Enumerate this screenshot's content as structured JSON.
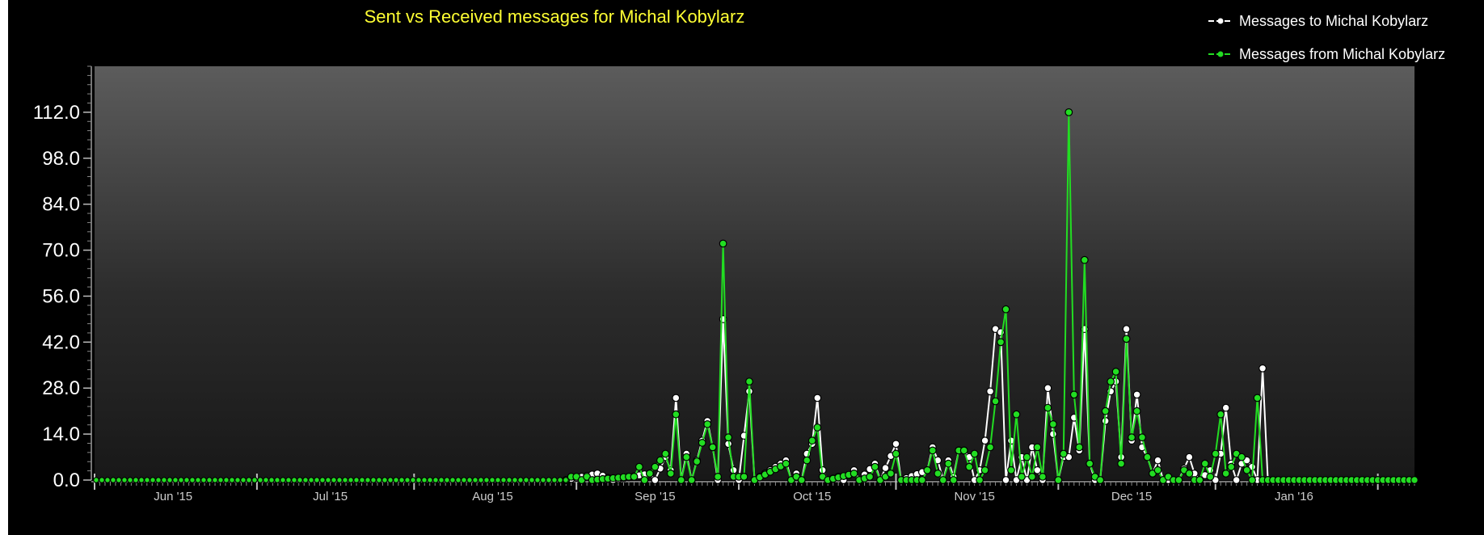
{
  "chart_data": {
    "type": "line",
    "title": "Sent vs Received messages for Michal Kobylarz",
    "xlabel": "",
    "ylabel": "",
    "ylim": [
      0,
      126
    ],
    "y_ticks": [
      "0.0",
      "14.0",
      "28.0",
      "42.0",
      "56.0",
      "70.0",
      "84.0",
      "98.0",
      "112.0"
    ],
    "x_range": [
      "2015-05-17",
      "2016-01-24"
    ],
    "x_ticks": [
      {
        "date": "2015-06-01",
        "label": "Jun '15"
      },
      {
        "date": "2015-07-01",
        "label": "Jul '15"
      },
      {
        "date": "2015-08-01",
        "label": "Aug '15"
      },
      {
        "date": "2015-09-01",
        "label": "Sep '15"
      },
      {
        "date": "2015-10-01",
        "label": "Oct '15"
      },
      {
        "date": "2015-11-01",
        "label": "Nov '15"
      },
      {
        "date": "2015-12-01",
        "label": "Dec '15"
      },
      {
        "date": "2016-01-01",
        "label": "Jan '16"
      }
    ],
    "grid": false,
    "legend_position": "top-right",
    "series": [
      {
        "name": "Messages to Michal Kobylarz",
        "color": "#ffffff",
        "points": [
          [
            "2015-05-17",
            0
          ],
          [
            "2015-08-15",
            0
          ],
          [
            "2015-08-21",
            2
          ],
          [
            "2015-08-24",
            0
          ],
          [
            "2015-08-31",
            2
          ],
          [
            "2015-09-01",
            0
          ],
          [
            "2015-09-03",
            7
          ],
          [
            "2015-09-04",
            3
          ],
          [
            "2015-09-05",
            25
          ],
          [
            "2015-09-06",
            0
          ],
          [
            "2015-09-07",
            8
          ],
          [
            "2015-09-08",
            0
          ],
          [
            "2015-09-11",
            18
          ],
          [
            "2015-09-12",
            10
          ],
          [
            "2015-09-13",
            0
          ],
          [
            "2015-09-14",
            49
          ],
          [
            "2015-09-15",
            11
          ],
          [
            "2015-09-16",
            3
          ],
          [
            "2015-09-17",
            0
          ],
          [
            "2015-09-19",
            27
          ],
          [
            "2015-09-20",
            0
          ],
          [
            "2015-09-26",
            6
          ],
          [
            "2015-09-27",
            0
          ],
          [
            "2015-09-28",
            2
          ],
          [
            "2015-09-29",
            0
          ],
          [
            "2015-09-30",
            8
          ],
          [
            "2015-10-01",
            11
          ],
          [
            "2015-10-02",
            25
          ],
          [
            "2015-10-03",
            3
          ],
          [
            "2015-10-04",
            0
          ],
          [
            "2015-10-06",
            1
          ],
          [
            "2015-10-07",
            0
          ],
          [
            "2015-10-09",
            3
          ],
          [
            "2015-10-10",
            0
          ],
          [
            "2015-10-13",
            5
          ],
          [
            "2015-10-14",
            0
          ],
          [
            "2015-10-17",
            11
          ],
          [
            "2015-10-18",
            0
          ],
          [
            "2015-10-23",
            3
          ],
          [
            "2015-10-24",
            10
          ],
          [
            "2015-10-25",
            6
          ],
          [
            "2015-10-26",
            0
          ],
          [
            "2015-10-27",
            6
          ],
          [
            "2015-10-28",
            1
          ],
          [
            "2015-10-29",
            9
          ],
          [
            "2015-10-30",
            9
          ],
          [
            "2015-10-31",
            7
          ],
          [
            "2015-11-01",
            0
          ],
          [
            "2015-11-02",
            3
          ],
          [
            "2015-11-03",
            12
          ],
          [
            "2015-11-04",
            27
          ],
          [
            "2015-11-05",
            46
          ],
          [
            "2015-11-06",
            45
          ],
          [
            "2015-11-07",
            0
          ],
          [
            "2015-11-08",
            12
          ],
          [
            "2015-11-09",
            0
          ],
          [
            "2015-11-10",
            7
          ],
          [
            "2015-11-11",
            0
          ],
          [
            "2015-11-12",
            10
          ],
          [
            "2015-11-13",
            3
          ],
          [
            "2015-11-14",
            0
          ],
          [
            "2015-11-15",
            28
          ],
          [
            "2015-11-16",
            14
          ],
          [
            "2015-11-17",
            0
          ],
          [
            "2015-11-18",
            7
          ],
          [
            "2015-11-19",
            7
          ],
          [
            "2015-11-20",
            19
          ],
          [
            "2015-11-21",
            9
          ],
          [
            "2015-11-22",
            46
          ],
          [
            "2015-11-23",
            5
          ],
          [
            "2015-11-24",
            0
          ],
          [
            "2015-11-25",
            0
          ],
          [
            "2015-11-26",
            18
          ],
          [
            "2015-11-27",
            27
          ],
          [
            "2015-11-28",
            30
          ],
          [
            "2015-11-29",
            7
          ],
          [
            "2015-11-30",
            46
          ],
          [
            "2015-12-01",
            12
          ],
          [
            "2015-12-02",
            26
          ],
          [
            "2015-12-03",
            10
          ],
          [
            "2015-12-04",
            7
          ],
          [
            "2015-12-05",
            2
          ],
          [
            "2015-12-06",
            6
          ],
          [
            "2015-12-07",
            0
          ],
          [
            "2015-12-10",
            0
          ],
          [
            "2015-12-12",
            7
          ],
          [
            "2015-12-13",
            2
          ],
          [
            "2015-12-14",
            0
          ],
          [
            "2015-12-16",
            3
          ],
          [
            "2015-12-17",
            0
          ],
          [
            "2015-12-18",
            8
          ],
          [
            "2015-12-19",
            22
          ],
          [
            "2015-12-20",
            5
          ],
          [
            "2015-12-21",
            0
          ],
          [
            "2015-12-22",
            5
          ],
          [
            "2015-12-23",
            6
          ],
          [
            "2015-12-24",
            4
          ],
          [
            "2015-12-25",
            0
          ],
          [
            "2015-12-26",
            34
          ],
          [
            "2015-12-27",
            0
          ],
          [
            "2016-01-24",
            0
          ]
        ]
      },
      {
        "name": "Messages from Michal Kobylarz",
        "color": "#22dd22",
        "points": [
          [
            "2015-05-17",
            0
          ],
          [
            "2015-08-15",
            0
          ],
          [
            "2015-08-16",
            1
          ],
          [
            "2015-08-17",
            1
          ],
          [
            "2015-08-18",
            0
          ],
          [
            "2015-08-19",
            1
          ],
          [
            "2015-08-20",
            0
          ],
          [
            "2015-08-27",
            1
          ],
          [
            "2015-08-28",
            1
          ],
          [
            "2015-08-29",
            4
          ],
          [
            "2015-08-30",
            0
          ],
          [
            "2015-09-03",
            8
          ],
          [
            "2015-09-04",
            2
          ],
          [
            "2015-09-05",
            20
          ],
          [
            "2015-09-06",
            0
          ],
          [
            "2015-09-07",
            7
          ],
          [
            "2015-09-08",
            0
          ],
          [
            "2015-09-11",
            17
          ],
          [
            "2015-09-12",
            10
          ],
          [
            "2015-09-13",
            1
          ],
          [
            "2015-09-14",
            72
          ],
          [
            "2015-09-15",
            13
          ],
          [
            "2015-09-16",
            1
          ],
          [
            "2015-09-17",
            1
          ],
          [
            "2015-09-18",
            1
          ],
          [
            "2015-09-19",
            30
          ],
          [
            "2015-09-20",
            0
          ],
          [
            "2015-09-26",
            5
          ],
          [
            "2015-09-27",
            0
          ],
          [
            "2015-09-28",
            1
          ],
          [
            "2015-09-29",
            0
          ],
          [
            "2015-09-30",
            6
          ],
          [
            "2015-10-01",
            12
          ],
          [
            "2015-10-02",
            16
          ],
          [
            "2015-10-03",
            1
          ],
          [
            "2015-10-04",
            0
          ],
          [
            "2015-10-09",
            2
          ],
          [
            "2015-10-10",
            0
          ],
          [
            "2015-10-12",
            1
          ],
          [
            "2015-10-13",
            4
          ],
          [
            "2015-10-14",
            0
          ],
          [
            "2015-10-16",
            2
          ],
          [
            "2015-10-17",
            8
          ],
          [
            "2015-10-18",
            0
          ],
          [
            "2015-10-22",
            0
          ],
          [
            "2015-10-23",
            3
          ],
          [
            "2015-10-24",
            9
          ],
          [
            "2015-10-25",
            2
          ],
          [
            "2015-10-26",
            0
          ],
          [
            "2015-10-27",
            5
          ],
          [
            "2015-10-28",
            0
          ],
          [
            "2015-10-29",
            9
          ],
          [
            "2015-10-30",
            9
          ],
          [
            "2015-10-31",
            4
          ],
          [
            "2015-11-01",
            8
          ],
          [
            "2015-11-02",
            0
          ],
          [
            "2015-11-03",
            3
          ],
          [
            "2015-11-04",
            10
          ],
          [
            "2015-11-05",
            24
          ],
          [
            "2015-11-06",
            42
          ],
          [
            "2015-11-07",
            52
          ],
          [
            "2015-11-08",
            3
          ],
          [
            "2015-11-09",
            20
          ],
          [
            "2015-11-10",
            1
          ],
          [
            "2015-11-11",
            7
          ],
          [
            "2015-11-12",
            1
          ],
          [
            "2015-11-13",
            10
          ],
          [
            "2015-11-14",
            1
          ],
          [
            "2015-11-15",
            22
          ],
          [
            "2015-11-16",
            17
          ],
          [
            "2015-11-17",
            0
          ],
          [
            "2015-11-18",
            8
          ],
          [
            "2015-11-19",
            112
          ],
          [
            "2015-11-20",
            26
          ],
          [
            "2015-11-21",
            10
          ],
          [
            "2015-11-22",
            67
          ],
          [
            "2015-11-23",
            5
          ],
          [
            "2015-11-24",
            1
          ],
          [
            "2015-11-25",
            0
          ],
          [
            "2015-11-26",
            21
          ],
          [
            "2015-11-27",
            30
          ],
          [
            "2015-11-28",
            33
          ],
          [
            "2015-11-29",
            5
          ],
          [
            "2015-11-30",
            43
          ],
          [
            "2015-12-01",
            13
          ],
          [
            "2015-12-02",
            21
          ],
          [
            "2015-12-03",
            13
          ],
          [
            "2015-12-04",
            7
          ],
          [
            "2015-12-05",
            2
          ],
          [
            "2015-12-06",
            3
          ],
          [
            "2015-12-07",
            0
          ],
          [
            "2015-12-08",
            1
          ],
          [
            "2015-12-09",
            0
          ],
          [
            "2015-12-10",
            0
          ],
          [
            "2015-12-11",
            3
          ],
          [
            "2015-12-12",
            2
          ],
          [
            "2015-12-13",
            0
          ],
          [
            "2015-12-14",
            0
          ],
          [
            "2015-12-15",
            5
          ],
          [
            "2015-12-16",
            1
          ],
          [
            "2015-12-17",
            8
          ],
          [
            "2015-12-18",
            20
          ],
          [
            "2015-12-19",
            2
          ],
          [
            "2015-12-20",
            4
          ],
          [
            "2015-12-21",
            8
          ],
          [
            "2015-12-22",
            7
          ],
          [
            "2015-12-23",
            3
          ],
          [
            "2015-12-24",
            0
          ],
          [
            "2015-12-25",
            25
          ],
          [
            "2015-12-26",
            0
          ],
          [
            "2016-01-24",
            0
          ]
        ]
      }
    ]
  }
}
